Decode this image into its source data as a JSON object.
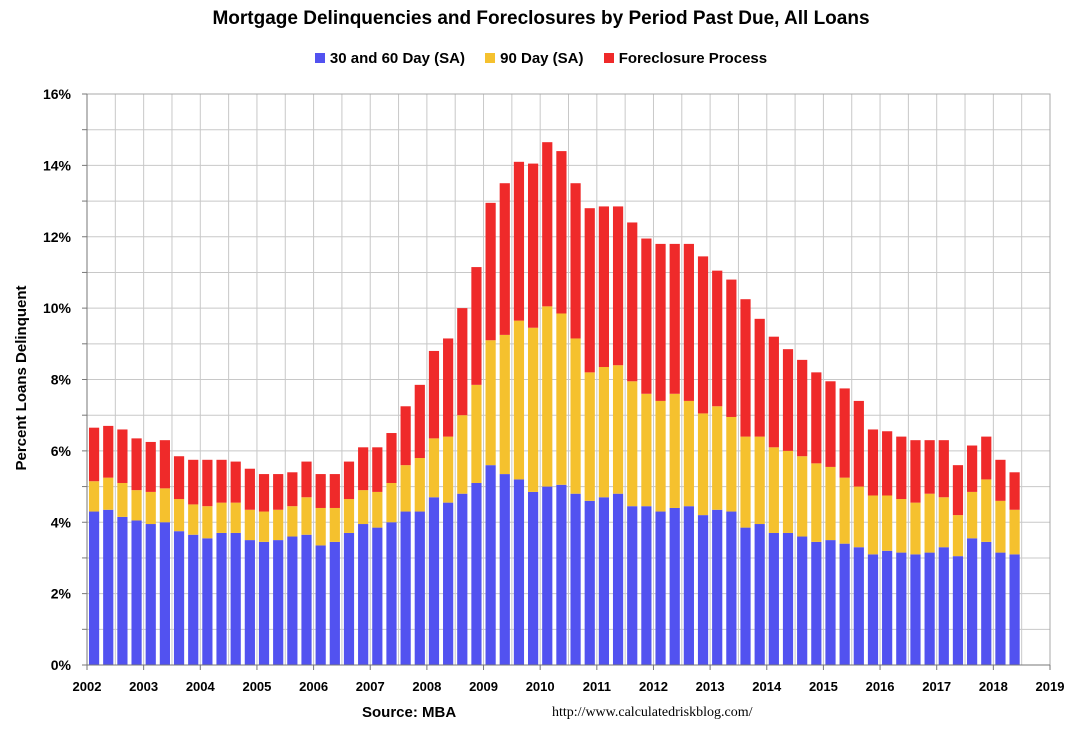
{
  "chart_data": {
    "type": "bar",
    "stacked": true,
    "title": "Mortgage Delinquencies and Foreclosures by Period Past Due, All Loans",
    "ylabel": "Percent Loans Delinquent",
    "xlabel": "",
    "ylim": [
      0,
      16
    ],
    "xlim": [
      2002,
      2019
    ],
    "grid": true,
    "legend_position": "top-center",
    "y_ticks": [
      "0%",
      "2%",
      "4%",
      "6%",
      "8%",
      "10%",
      "12%",
      "14%",
      "16%"
    ],
    "x_ticks": [
      "2002",
      "2003",
      "2004",
      "2005",
      "2006",
      "2007",
      "2008",
      "2009",
      "2010",
      "2011",
      "2012",
      "2013",
      "2014",
      "2015",
      "2016",
      "2017",
      "2018",
      "2019"
    ],
    "series": [
      {
        "name": "30 and 60 Day (SA)",
        "color": "#5252f0",
        "values": [
          4.3,
          4.35,
          4.15,
          4.05,
          3.95,
          4.0,
          3.75,
          3.65,
          3.55,
          3.7,
          3.7,
          3.5,
          3.45,
          3.5,
          3.6,
          3.65,
          3.35,
          3.45,
          3.7,
          3.95,
          3.85,
          4.0,
          4.3,
          4.3,
          4.7,
          4.55,
          4.8,
          5.1,
          5.6,
          5.35,
          5.2,
          4.85,
          5.0,
          5.05,
          4.8,
          4.6,
          4.7,
          4.8,
          4.45,
          4.45,
          4.3,
          4.4,
          4.45,
          4.2,
          4.35,
          4.3,
          3.85,
          3.95,
          3.7,
          3.7,
          3.6,
          3.45,
          3.5,
          3.4,
          3.3,
          3.1,
          3.2,
          3.15,
          3.1,
          3.15,
          3.3,
          3.05,
          3.55,
          3.45,
          3.15,
          3.1
        ]
      },
      {
        "name": "90 Day (SA)",
        "color": "#f5c12e",
        "values": [
          0.85,
          0.9,
          0.95,
          0.85,
          0.9,
          0.95,
          0.9,
          0.85,
          0.9,
          0.85,
          0.85,
          0.85,
          0.85,
          0.85,
          0.85,
          1.05,
          1.05,
          0.95,
          0.95,
          0.95,
          1.0,
          1.1,
          1.3,
          1.5,
          1.65,
          1.85,
          2.2,
          2.75,
          3.5,
          3.9,
          4.45,
          4.6,
          5.05,
          4.8,
          4.35,
          3.6,
          3.65,
          3.6,
          3.5,
          3.15,
          3.1,
          3.2,
          2.95,
          2.85,
          2.9,
          2.65,
          2.55,
          2.45,
          2.4,
          2.3,
          2.25,
          2.2,
          2.05,
          1.85,
          1.7,
          1.65,
          1.55,
          1.5,
          1.45,
          1.65,
          1.4,
          1.15,
          1.3,
          1.75,
          1.45,
          1.25
        ]
      },
      {
        "name": "Foreclosure Process",
        "color": "#ef2a2a",
        "values": [
          1.5,
          1.45,
          1.5,
          1.45,
          1.4,
          1.35,
          1.2,
          1.25,
          1.3,
          1.2,
          1.15,
          1.15,
          1.05,
          1.0,
          0.95,
          1.0,
          0.95,
          0.95,
          1.05,
          1.2,
          1.25,
          1.4,
          1.65,
          2.05,
          2.45,
          2.75,
          3.0,
          3.3,
          3.85,
          4.25,
          4.45,
          4.6,
          4.6,
          4.55,
          4.35,
          4.6,
          4.5,
          4.45,
          4.45,
          4.35,
          4.4,
          4.2,
          4.4,
          4.4,
          3.8,
          3.85,
          3.85,
          3.3,
          3.1,
          2.85,
          2.7,
          2.55,
          2.4,
          2.5,
          2.4,
          1.85,
          1.8,
          1.75,
          1.75,
          1.5,
          1.6,
          1.4,
          1.3,
          1.2,
          1.15,
          1.05
        ]
      }
    ]
  },
  "footer": {
    "source": "Source: MBA",
    "url": "http://www.calculatedriskblog.com/"
  }
}
